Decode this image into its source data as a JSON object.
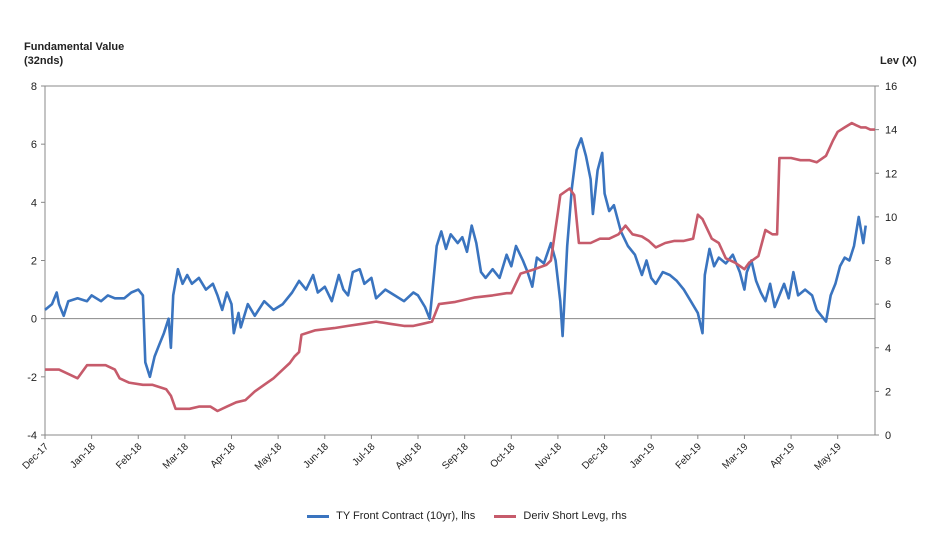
{
  "chart_data": {
    "type": "line",
    "left_axis": {
      "label": "Fundamental Value (32nds)",
      "range": [
        -4,
        8
      ],
      "ticks": [
        -4,
        -2,
        0,
        2,
        4,
        6,
        8
      ]
    },
    "right_axis": {
      "label": "Lev (X)",
      "range": [
        0,
        16
      ],
      "ticks": [
        0,
        2,
        4,
        6,
        8,
        10,
        12,
        14,
        16
      ]
    },
    "x_ticks": [
      "Dec-17",
      "Jan-18",
      "Feb-18",
      "Mar-18",
      "Apr-18",
      "May-18",
      "Jun-18",
      "Jul-18",
      "Aug-18",
      "Sep-18",
      "Oct-18",
      "Nov-18",
      "Dec-18",
      "Jan-19",
      "Feb-19",
      "Mar-19",
      "Apr-19",
      "May-19"
    ],
    "x_range": [
      0,
      17.8
    ],
    "grid": false,
    "legend_position": "bottom",
    "series": [
      {
        "name": "TY Front Contract (10yr), lhs",
        "axis": "left",
        "color": "#3a74bf",
        "points": [
          [
            0,
            0.3
          ],
          [
            0.15,
            0.5
          ],
          [
            0.25,
            0.9
          ],
          [
            0.3,
            0.5
          ],
          [
            0.4,
            0.1
          ],
          [
            0.5,
            0.6
          ],
          [
            0.7,
            0.7
          ],
          [
            0.9,
            0.6
          ],
          [
            1,
            0.8
          ],
          [
            1.2,
            0.6
          ],
          [
            1.35,
            0.8
          ],
          [
            1.5,
            0.7
          ],
          [
            1.7,
            0.7
          ],
          [
            1.85,
            0.9
          ],
          [
            2,
            1
          ],
          [
            2.1,
            0.8
          ],
          [
            2.15,
            -1.5
          ],
          [
            2.25,
            -2
          ],
          [
            2.35,
            -1.3
          ],
          [
            2.45,
            -0.9
          ],
          [
            2.55,
            -0.5
          ],
          [
            2.65,
            0
          ],
          [
            2.7,
            -1
          ],
          [
            2.75,
            0.8
          ],
          [
            2.85,
            1.7
          ],
          [
            2.95,
            1.2
          ],
          [
            3.05,
            1.5
          ],
          [
            3.15,
            1.2
          ],
          [
            3.3,
            1.4
          ],
          [
            3.45,
            1
          ],
          [
            3.6,
            1.2
          ],
          [
            3.7,
            0.8
          ],
          [
            3.8,
            0.3
          ],
          [
            3.9,
            0.9
          ],
          [
            4,
            0.5
          ],
          [
            4.05,
            -0.5
          ],
          [
            4.15,
            0.2
          ],
          [
            4.2,
            -0.3
          ],
          [
            4.35,
            0.5
          ],
          [
            4.5,
            0.1
          ],
          [
            4.7,
            0.6
          ],
          [
            4.9,
            0.3
          ],
          [
            5.1,
            0.5
          ],
          [
            5.3,
            0.9
          ],
          [
            5.45,
            1.3
          ],
          [
            5.6,
            1
          ],
          [
            5.75,
            1.5
          ],
          [
            5.85,
            0.9
          ],
          [
            6,
            1.1
          ],
          [
            6.15,
            0.6
          ],
          [
            6.3,
            1.5
          ],
          [
            6.4,
            1
          ],
          [
            6.5,
            0.8
          ],
          [
            6.6,
            1.6
          ],
          [
            6.75,
            1.7
          ],
          [
            6.85,
            1.2
          ],
          [
            7,
            1.4
          ],
          [
            7.1,
            0.7
          ],
          [
            7.3,
            1
          ],
          [
            7.5,
            0.8
          ],
          [
            7.7,
            0.6
          ],
          [
            7.9,
            0.9
          ],
          [
            8,
            0.8
          ],
          [
            8.15,
            0.4
          ],
          [
            8.25,
            0
          ],
          [
            8.3,
            0.8
          ],
          [
            8.4,
            2.5
          ],
          [
            8.5,
            3
          ],
          [
            8.6,
            2.4
          ],
          [
            8.7,
            2.9
          ],
          [
            8.85,
            2.6
          ],
          [
            8.95,
            2.8
          ],
          [
            9.05,
            2.3
          ],
          [
            9.15,
            3.2
          ],
          [
            9.25,
            2.6
          ],
          [
            9.35,
            1.6
          ],
          [
            9.45,
            1.4
          ],
          [
            9.6,
            1.7
          ],
          [
            9.75,
            1.4
          ],
          [
            9.9,
            2.2
          ],
          [
            10,
            1.8
          ],
          [
            10.1,
            2.5
          ],
          [
            10.25,
            2
          ],
          [
            10.35,
            1.6
          ],
          [
            10.45,
            1.1
          ],
          [
            10.55,
            2.1
          ],
          [
            10.7,
            1.9
          ],
          [
            10.85,
            2.6
          ],
          [
            10.95,
            2
          ],
          [
            11.05,
            0.6
          ],
          [
            11.1,
            -0.6
          ],
          [
            11.2,
            2.5
          ],
          [
            11.3,
            4.5
          ],
          [
            11.4,
            5.8
          ],
          [
            11.5,
            6.2
          ],
          [
            11.6,
            5.6
          ],
          [
            11.7,
            4.8
          ],
          [
            11.75,
            3.6
          ],
          [
            11.85,
            5.1
          ],
          [
            11.95,
            5.7
          ],
          [
            12,
            4.3
          ],
          [
            12.1,
            3.7
          ],
          [
            12.2,
            3.9
          ],
          [
            12.35,
            3
          ],
          [
            12.5,
            2.5
          ],
          [
            12.65,
            2.2
          ],
          [
            12.8,
            1.5
          ],
          [
            12.9,
            2
          ],
          [
            13,
            1.4
          ],
          [
            13.1,
            1.2
          ],
          [
            13.25,
            1.6
          ],
          [
            13.4,
            1.5
          ],
          [
            13.55,
            1.3
          ],
          [
            13.7,
            1
          ],
          [
            13.85,
            0.6
          ],
          [
            14,
            0.2
          ],
          [
            14.1,
            -0.5
          ],
          [
            14.15,
            1.5
          ],
          [
            14.25,
            2.4
          ],
          [
            14.35,
            1.8
          ],
          [
            14.45,
            2.1
          ],
          [
            14.6,
            1.9
          ],
          [
            14.75,
            2.2
          ],
          [
            14.9,
            1.6
          ],
          [
            15,
            1
          ],
          [
            15.05,
            1.6
          ],
          [
            15.15,
            2
          ],
          [
            15.25,
            1.3
          ],
          [
            15.35,
            0.9
          ],
          [
            15.45,
            0.6
          ],
          [
            15.55,
            1.2
          ],
          [
            15.65,
            0.4
          ],
          [
            15.75,
            0.8
          ],
          [
            15.85,
            1.2
          ],
          [
            15.95,
            0.7
          ],
          [
            16.05,
            1.6
          ],
          [
            16.15,
            0.8
          ],
          [
            16.3,
            1
          ],
          [
            16.45,
            0.8
          ],
          [
            16.55,
            0.3
          ],
          [
            16.65,
            0.1
          ],
          [
            16.75,
            -0.1
          ],
          [
            16.85,
            0.8
          ],
          [
            16.95,
            1.2
          ],
          [
            17.05,
            1.8
          ],
          [
            17.15,
            2.1
          ],
          [
            17.25,
            2
          ],
          [
            17.35,
            2.5
          ],
          [
            17.45,
            3.5
          ],
          [
            17.55,
            2.6
          ],
          [
            17.6,
            3.2
          ]
        ]
      },
      {
        "name": "Deriv Short Levg, rhs",
        "axis": "right",
        "color": "#c65b6b",
        "points": [
          [
            0,
            3
          ],
          [
            0.3,
            3
          ],
          [
            0.5,
            2.8
          ],
          [
            0.7,
            2.6
          ],
          [
            0.9,
            3.2
          ],
          [
            1.3,
            3.2
          ],
          [
            1.5,
            3
          ],
          [
            1.6,
            2.6
          ],
          [
            1.8,
            2.4
          ],
          [
            2.1,
            2.3
          ],
          [
            2.3,
            2.3
          ],
          [
            2.6,
            2.1
          ],
          [
            2.7,
            1.8
          ],
          [
            2.8,
            1.2
          ],
          [
            3.1,
            1.2
          ],
          [
            3.3,
            1.3
          ],
          [
            3.55,
            1.3
          ],
          [
            3.7,
            1.1
          ],
          [
            3.9,
            1.3
          ],
          [
            4.1,
            1.5
          ],
          [
            4.3,
            1.6
          ],
          [
            4.5,
            2
          ],
          [
            4.7,
            2.3
          ],
          [
            4.9,
            2.6
          ],
          [
            5.1,
            3
          ],
          [
            5.25,
            3.3
          ],
          [
            5.35,
            3.6
          ],
          [
            5.45,
            3.8
          ],
          [
            5.5,
            4.6
          ],
          [
            5.8,
            4.8
          ],
          [
            6.2,
            4.9
          ],
          [
            6.5,
            5
          ],
          [
            6.8,
            5.1
          ],
          [
            7.1,
            5.2
          ],
          [
            7.4,
            5.1
          ],
          [
            7.7,
            5
          ],
          [
            7.9,
            5
          ],
          [
            8.1,
            5.1
          ],
          [
            8.3,
            5.2
          ],
          [
            8.45,
            6
          ],
          [
            8.8,
            6.1
          ],
          [
            9.2,
            6.3
          ],
          [
            9.6,
            6.4
          ],
          [
            9.9,
            6.5
          ],
          [
            10,
            6.5
          ],
          [
            10.2,
            7.4
          ],
          [
            10.5,
            7.6
          ],
          [
            10.75,
            7.8
          ],
          [
            10.85,
            8
          ],
          [
            11,
            10.2
          ],
          [
            11.05,
            11
          ],
          [
            11.25,
            11.3
          ],
          [
            11.35,
            11
          ],
          [
            11.45,
            8.8
          ],
          [
            11.7,
            8.8
          ],
          [
            11.9,
            9
          ],
          [
            12.1,
            9
          ],
          [
            12.3,
            9.2
          ],
          [
            12.45,
            9.6
          ],
          [
            12.6,
            9.2
          ],
          [
            12.8,
            9.1
          ],
          [
            12.95,
            8.9
          ],
          [
            13.1,
            8.6
          ],
          [
            13.3,
            8.8
          ],
          [
            13.5,
            8.9
          ],
          [
            13.7,
            8.9
          ],
          [
            13.9,
            9
          ],
          [
            14,
            10.1
          ],
          [
            14.1,
            9.9
          ],
          [
            14.3,
            9
          ],
          [
            14.45,
            8.8
          ],
          [
            14.6,
            8.1
          ],
          [
            14.8,
            7.9
          ],
          [
            15,
            7.6
          ],
          [
            15.1,
            7.9
          ],
          [
            15.3,
            8.2
          ],
          [
            15.45,
            9.4
          ],
          [
            15.6,
            9.2
          ],
          [
            15.7,
            9.2
          ],
          [
            15.75,
            12.7
          ],
          [
            16,
            12.7
          ],
          [
            16.2,
            12.6
          ],
          [
            16.4,
            12.6
          ],
          [
            16.55,
            12.5
          ],
          [
            16.75,
            12.8
          ],
          [
            16.9,
            13.5
          ],
          [
            17,
            13.9
          ],
          [
            17.15,
            14.1
          ],
          [
            17.3,
            14.3
          ],
          [
            17.4,
            14.2
          ],
          [
            17.5,
            14.1
          ],
          [
            17.6,
            14.1
          ],
          [
            17.7,
            14
          ],
          [
            17.8,
            14
          ]
        ]
      }
    ]
  }
}
